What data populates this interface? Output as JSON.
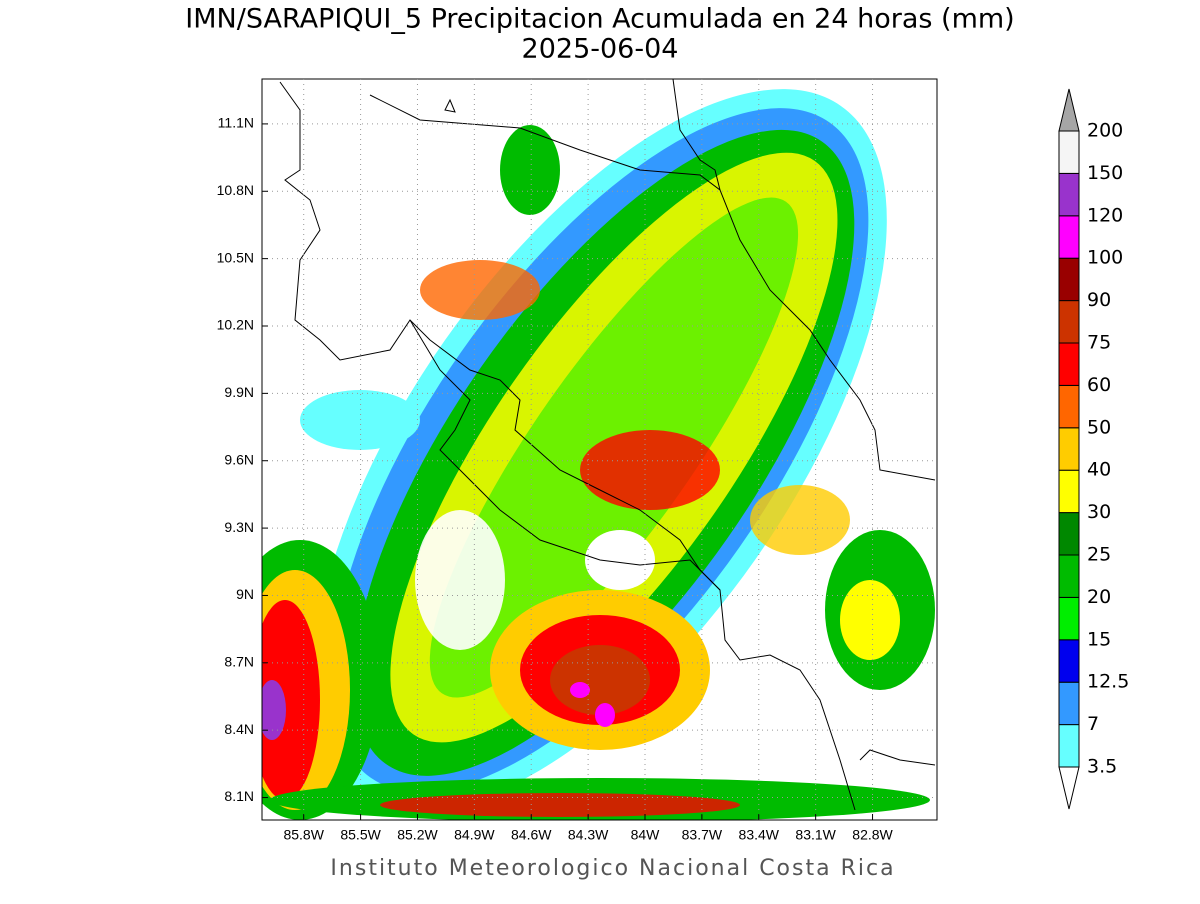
{
  "title": "IMN/SARAPIQUI_5 Precipitacion Acumulada en 24 horas (mm)",
  "subtitle": "2025-06-04",
  "footer": "Instituto Meteorologico Nacional Costa Rica",
  "map": {
    "lonlim": [
      -86.02,
      -82.46
    ],
    "latlim": [
      8.0,
      11.3
    ],
    "grid": true,
    "lonticks": [
      {
        "value": -85.8,
        "label": "85.8W"
      },
      {
        "value": -85.5,
        "label": "85.5W"
      },
      {
        "value": -85.2,
        "label": "85.2W"
      },
      {
        "value": -84.9,
        "label": "84.9W"
      },
      {
        "value": -84.6,
        "label": "84.6W"
      },
      {
        "value": -84.3,
        "label": "84.3W"
      },
      {
        "value": -84,
        "label": "84W"
      },
      {
        "value": -83.7,
        "label": "83.7W"
      },
      {
        "value": -83.4,
        "label": "83.4W"
      },
      {
        "value": -83.1,
        "label": "83.1W"
      },
      {
        "value": -82.8,
        "label": "82.8W"
      }
    ],
    "latticks": [
      {
        "value": 8.1,
        "label": "8.1N"
      },
      {
        "value": 8.4,
        "label": "8.4N"
      },
      {
        "value": 8.7,
        "label": "8.7N"
      },
      {
        "value": 9,
        "label": "9N"
      },
      {
        "value": 9.3,
        "label": "9.3N"
      },
      {
        "value": 9.6,
        "label": "9.6N"
      },
      {
        "value": 9.9,
        "label": "9.9N"
      },
      {
        "value": 10.2,
        "label": "10.2N"
      },
      {
        "value": 10.5,
        "label": "10.5N"
      },
      {
        "value": 10.8,
        "label": "10.8N"
      },
      {
        "value": 11.1,
        "label": "11.1N"
      }
    ]
  },
  "colorbar": {
    "levels": [
      3.5,
      7,
      12.5,
      15,
      20,
      25,
      30,
      40,
      50,
      60,
      75,
      90,
      100,
      120,
      150,
      200
    ],
    "colors": [
      "#66ffff",
      "#3399ff",
      "#0000ee",
      "#00ee00",
      "#00bb00",
      "#008800",
      "#ffff00",
      "#ffcc00",
      "#ff6600",
      "#ff0000",
      "#cc3300",
      "#990000",
      "#ff00ff",
      "#9933cc",
      "#f5f5f5"
    ],
    "under_color": "#ffffff",
    "over_color": "#a6a6a6"
  }
}
